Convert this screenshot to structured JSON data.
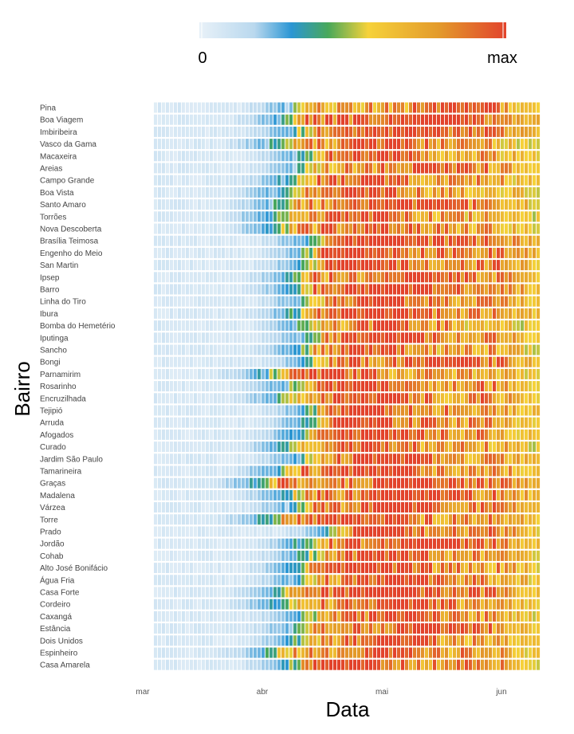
{
  "legend": {
    "min_label": "0",
    "max_label": "max",
    "colorscale": [
      "#e8f1f8",
      "#b9d8ee",
      "#2b96d4",
      "#49a85a",
      "#f6d23a",
      "#e39a2b",
      "#e2432c"
    ]
  },
  "chart_data": {
    "type": "heatmap",
    "title": "",
    "xlabel": "Data",
    "ylabel": "Bairro",
    "x_ticks": [
      "mar",
      "abr",
      "mai",
      "jun"
    ],
    "x_range": [
      "mar",
      "jun"
    ],
    "value_range": [
      "0",
      "max"
    ],
    "grid": false,
    "legend_position": "top",
    "rows": [
      {
        "name": "Pina",
        "onset": 0.34,
        "peak": 0.8,
        "level": 0.8
      },
      {
        "name": "Boa Viagem",
        "onset": 0.31,
        "peak": 0.7,
        "level": 0.92
      },
      {
        "name": "Imbiribeira",
        "onset": 0.34,
        "peak": 0.68,
        "level": 0.86
      },
      {
        "name": "Vasco da Gama",
        "onset": 0.29,
        "peak": 0.6,
        "level": 0.8
      },
      {
        "name": "Macaxeira",
        "onset": 0.36,
        "peak": 0.58,
        "level": 0.82
      },
      {
        "name": "Areias",
        "onset": 0.36,
        "peak": 0.72,
        "level": 0.82
      },
      {
        "name": "Campo Grande",
        "onset": 0.32,
        "peak": 0.55,
        "level": 0.82
      },
      {
        "name": "Boa Vista",
        "onset": 0.3,
        "peak": 0.55,
        "level": 0.8
      },
      {
        "name": "Santo Amaro",
        "onset": 0.3,
        "peak": 0.62,
        "level": 0.84
      },
      {
        "name": "Torrões",
        "onset": 0.28,
        "peak": 0.55,
        "level": 0.8
      },
      {
        "name": "Nova Descoberta",
        "onset": 0.29,
        "peak": 0.58,
        "level": 0.82
      },
      {
        "name": "Brasília Teimosa",
        "onset": 0.38,
        "peak": 0.58,
        "level": 0.92
      },
      {
        "name": "Engenho do Meio",
        "onset": 0.38,
        "peak": 0.5,
        "level": 0.9
      },
      {
        "name": "San Martin",
        "onset": 0.37,
        "peak": 0.52,
        "level": 0.88
      },
      {
        "name": "Ipsep",
        "onset": 0.34,
        "peak": 0.68,
        "level": 0.86
      },
      {
        "name": "Barro",
        "onset": 0.34,
        "peak": 0.6,
        "level": 0.9
      },
      {
        "name": "Linha do Tiro",
        "onset": 0.37,
        "peak": 0.58,
        "level": 0.84
      },
      {
        "name": "Ibura",
        "onset": 0.34,
        "peak": 0.58,
        "level": 0.86
      },
      {
        "name": "Bomba do Hemetério",
        "onset": 0.36,
        "peak": 0.62,
        "level": 0.78
      },
      {
        "name": "Iputinga",
        "onset": 0.37,
        "peak": 0.62,
        "level": 0.84
      },
      {
        "name": "Sancho",
        "onset": 0.35,
        "peak": 0.56,
        "level": 0.8
      },
      {
        "name": "Bongi",
        "onset": 0.38,
        "peak": 0.76,
        "level": 0.86
      },
      {
        "name": "Parnamirim",
        "onset": 0.27,
        "peak": 0.45,
        "level": 0.8
      },
      {
        "name": "Rosarinho",
        "onset": 0.33,
        "peak": 0.55,
        "level": 0.86
      },
      {
        "name": "Encruzilhada",
        "onset": 0.31,
        "peak": 0.58,
        "level": 0.84
      },
      {
        "name": "Tejipió",
        "onset": 0.38,
        "peak": 0.55,
        "level": 0.86
      },
      {
        "name": "Arruda",
        "onset": 0.38,
        "peak": 0.55,
        "level": 0.84
      },
      {
        "name": "Afogados",
        "onset": 0.35,
        "peak": 0.58,
        "level": 0.84
      },
      {
        "name": "Curado",
        "onset": 0.32,
        "peak": 0.55,
        "level": 0.8
      },
      {
        "name": "Jardim São Paulo",
        "onset": 0.36,
        "peak": 0.62,
        "level": 0.84
      },
      {
        "name": "Tamarineira",
        "onset": 0.3,
        "peak": 0.56,
        "level": 0.86
      },
      {
        "name": "Graças",
        "onset": 0.25,
        "peak": 0.68,
        "level": 0.9
      },
      {
        "name": "Madalena",
        "onset": 0.32,
        "peak": 0.66,
        "level": 0.88
      },
      {
        "name": "Várzea",
        "onset": 0.34,
        "peak": 0.65,
        "level": 0.86
      },
      {
        "name": "Torre",
        "onset": 0.27,
        "peak": 0.5,
        "level": 0.86
      },
      {
        "name": "Prado",
        "onset": 0.44,
        "peak": 0.56,
        "level": 0.86
      },
      {
        "name": "Jordão",
        "onset": 0.36,
        "peak": 0.7,
        "level": 0.88
      },
      {
        "name": "Cohab",
        "onset": 0.37,
        "peak": 0.62,
        "level": 0.84
      },
      {
        "name": "Alto José Bonifácio",
        "onset": 0.34,
        "peak": 0.56,
        "level": 0.84
      },
      {
        "name": "Água Fria",
        "onset": 0.35,
        "peak": 0.66,
        "level": 0.84
      },
      {
        "name": "Casa Forte",
        "onset": 0.3,
        "peak": 0.6,
        "level": 0.88
      },
      {
        "name": "Cordeiro",
        "onset": 0.3,
        "peak": 0.64,
        "level": 0.84
      },
      {
        "name": "Caxangá",
        "onset": 0.36,
        "peak": 0.64,
        "level": 0.82
      },
      {
        "name": "Estância",
        "onset": 0.35,
        "peak": 0.7,
        "level": 0.86
      },
      {
        "name": "Dois Unidos",
        "onset": 0.34,
        "peak": 0.62,
        "level": 0.8
      },
      {
        "name": "Espinheiro",
        "onset": 0.28,
        "peak": 0.58,
        "level": 0.82
      },
      {
        "name": "Casa Amarela",
        "onset": 0.33,
        "peak": 0.52,
        "level": 0.84
      }
    ]
  }
}
